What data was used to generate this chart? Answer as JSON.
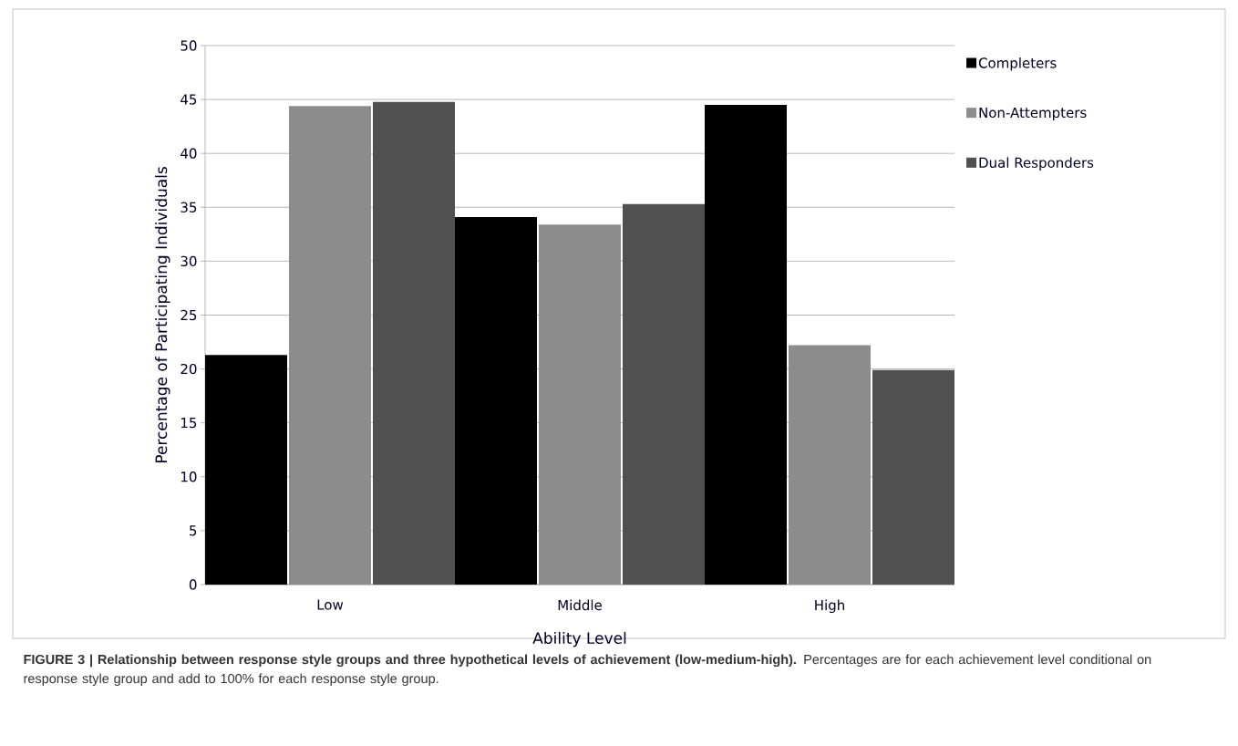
{
  "chart_data": {
    "type": "bar",
    "xlabel": "Ability Level",
    "ylabel": "Percentage of Participating Individuals",
    "categories": [
      "Low",
      "Middle",
      "High"
    ],
    "series": [
      {
        "name": "Completers",
        "color": "#000000",
        "values": [
          21.3,
          34.1,
          44.5
        ]
      },
      {
        "name": "Non-Attempters",
        "color": "#8c8c8c",
        "values": [
          44.4,
          33.4,
          22.2
        ]
      },
      {
        "name": "Dual Responders",
        "color": "#505050",
        "values": [
          44.8,
          35.3,
          19.9
        ]
      }
    ],
    "ylim": [
      0,
      50
    ],
    "yticks": [
      0,
      5,
      10,
      15,
      20,
      25,
      30,
      35,
      40,
      45,
      50
    ],
    "grid": "y",
    "legend": "right",
    "annotations": [
      "**FIGURE 3 | Relationship between response style groups and three hypothetical levels of achievement (low-medium-high).** Percentages are for each achievement level conditional on response style group and add to 100% for each response style group."
    ]
  }
}
